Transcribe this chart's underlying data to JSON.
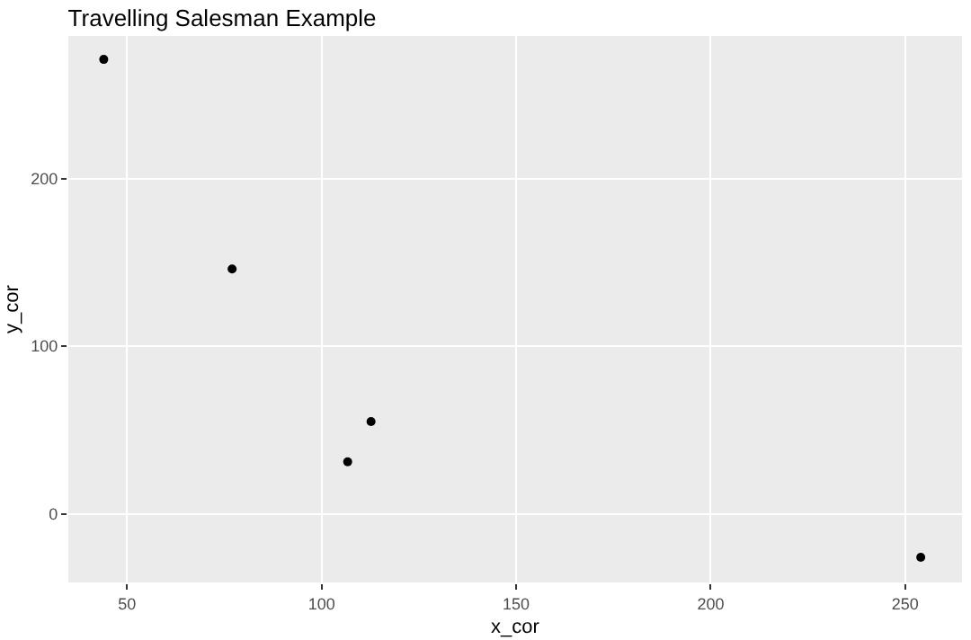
{
  "chart_data": {
    "type": "scatter",
    "title": "Travelling Salesman Example",
    "xlabel": "x_cor",
    "ylabel": "y_cor",
    "x": [
      44,
      77,
      106.7,
      112.7,
      254
    ],
    "values": [
      271,
      146,
      31,
      55,
      -26
    ],
    "color": "#000000",
    "marker": "circle",
    "xlim": [
      34.9,
      264.6
    ],
    "xticks": [
      50,
      100,
      150,
      200,
      250
    ],
    "ylim": [
      -41,
      285
    ],
    "yticks": [
      0,
      100,
      200
    ],
    "grid": true
  }
}
